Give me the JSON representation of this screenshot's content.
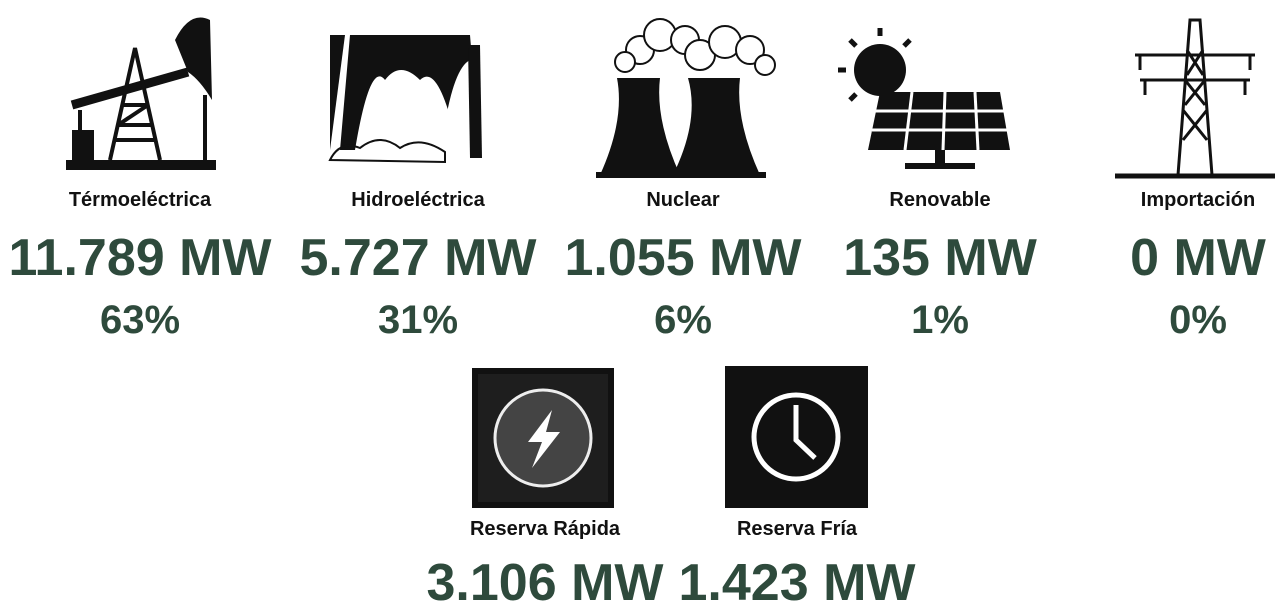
{
  "items": [
    {
      "label": "Térmoeléctrica",
      "value": "11.789 MW",
      "share": "63%"
    },
    {
      "label": "Hidroeléctrica",
      "value": "5.727 MW",
      "share": "31%"
    },
    {
      "label": "Nuclear",
      "value": "1.055 MW",
      "share": "6%"
    },
    {
      "label": "Renovable",
      "value": "135 MW",
      "share": "1%"
    },
    {
      "label": "Importación",
      "value": "0 MW",
      "share": "0%"
    }
  ],
  "reserves": [
    {
      "label": "Reserva Rápida",
      "value": "3.106 MW"
    },
    {
      "label": "Reserva Fría",
      "value": "1.423 MW"
    }
  ]
}
